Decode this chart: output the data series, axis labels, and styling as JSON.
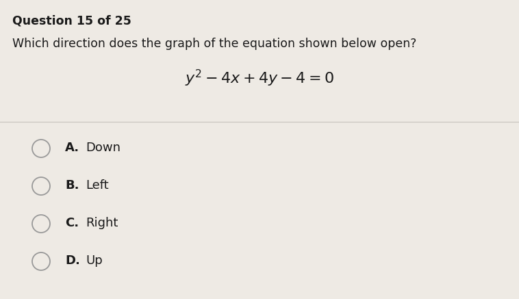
{
  "title": "Question 15 of 25",
  "question": "Which direction does the graph of the equation shown below open?",
  "equation": "$\\mathit{y}^{2}-4\\mathit{x}+4\\mathit{y}-4=0$",
  "options": [
    {
      "letter": "A",
      "text": "Down"
    },
    {
      "letter": "B",
      "text": "Left"
    },
    {
      "letter": "C",
      "text": "Right"
    },
    {
      "letter": "D",
      "text": "Up"
    }
  ],
  "bg_color": "#eeeae4",
  "title_color": "#1a1a1a",
  "question_color": "#1a1a1a",
  "equation_color": "#1a1a1a",
  "option_color": "#1a1a1a",
  "divider_color": "#c8c4be",
  "circle_edge_color": "#999999",
  "title_fontsize": 12.5,
  "question_fontsize": 12.5,
  "equation_fontsize": 16,
  "option_fontsize": 13
}
